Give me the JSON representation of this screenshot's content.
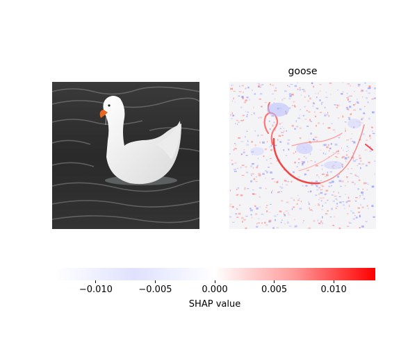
{
  "chart_data": {
    "type": "heatmap",
    "panels": [
      {
        "kind": "input-image",
        "title": "",
        "subject": "white goose swimming on dark rippled water"
      },
      {
        "kind": "shap-explanation",
        "title": "goose",
        "subject": "SHAP attribution overlay of the goose image"
      }
    ],
    "colorbar": {
      "label": "SHAP value",
      "range": [
        -0.0135,
        0.0135
      ],
      "ticks": [
        -0.01,
        -0.005,
        0.0,
        0.005,
        0.01
      ],
      "tick_labels": [
        "−0.010",
        "−0.005",
        "0.000",
        "0.005",
        "0.010"
      ],
      "colormap": {
        "negative": "#0000ff",
        "zero": "#ffffff",
        "positive": "#ff0000"
      }
    }
  }
}
